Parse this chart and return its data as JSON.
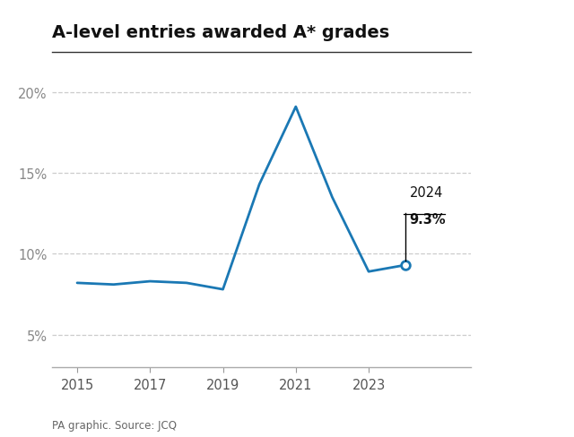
{
  "title": "A-level entries awarded A* grades",
  "years": [
    2015,
    2016,
    2017,
    2018,
    2019,
    2020,
    2021,
    2022,
    2023,
    2024
  ],
  "values": [
    8.2,
    8.1,
    8.3,
    8.2,
    7.8,
    14.3,
    19.1,
    13.5,
    8.9,
    9.3
  ],
  "line_color": "#1a78b4",
  "bg_color": "#ffffff",
  "annotation_year": "2024",
  "annotation_value": "9.3%",
  "source_text": "PA graphic. Source: JCQ",
  "yticks": [
    5,
    10,
    15,
    20
  ],
  "ytick_labels": [
    "5%",
    "10%",
    "15%",
    "20%"
  ],
  "xticks": [
    2015,
    2017,
    2019,
    2021,
    2023
  ],
  "ylim": [
    3.0,
    22.5
  ],
  "xlim": [
    2014.3,
    2025.8
  ]
}
